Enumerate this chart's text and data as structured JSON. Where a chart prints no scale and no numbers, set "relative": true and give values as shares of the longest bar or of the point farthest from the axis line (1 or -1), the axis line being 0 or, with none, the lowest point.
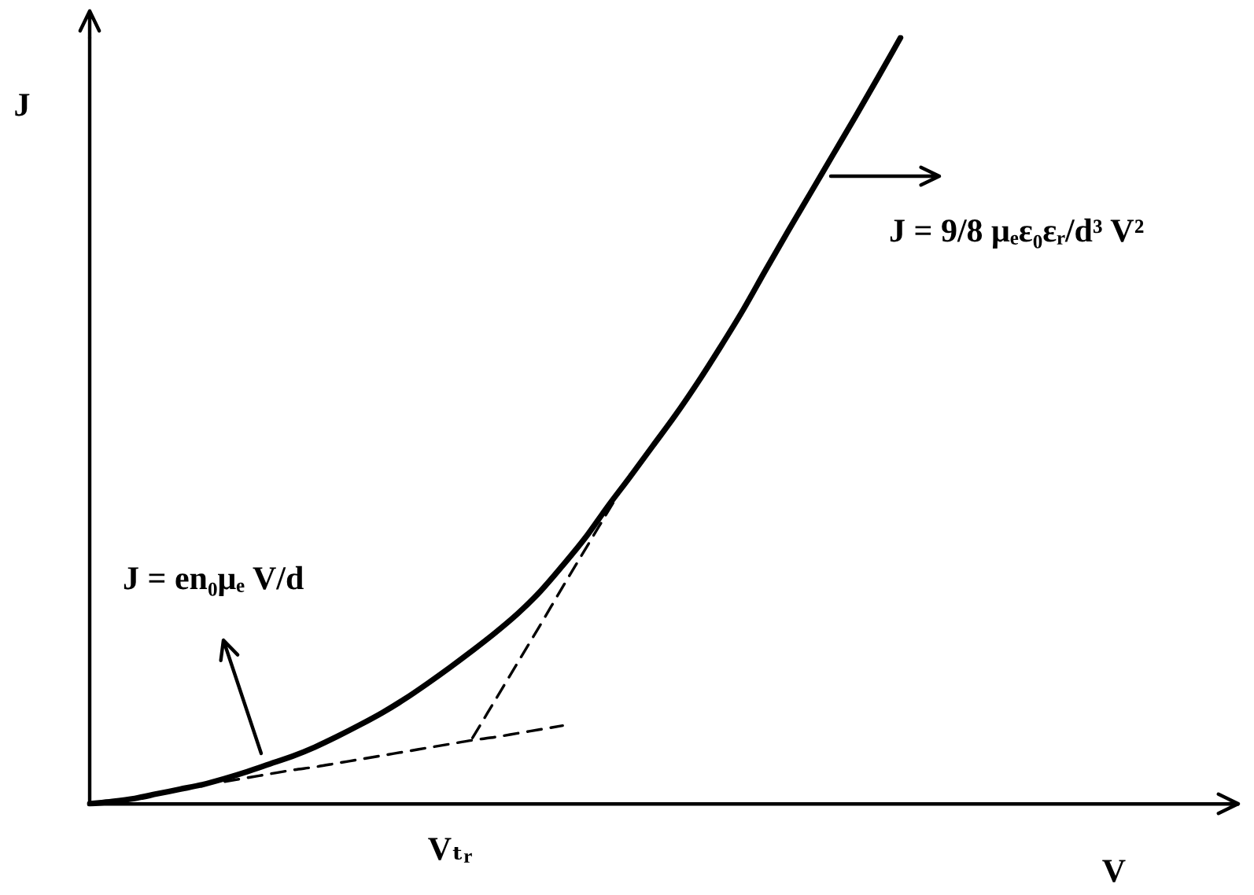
{
  "chart_data": {
    "type": "line",
    "relative": true,
    "xlabel": "V",
    "ylabel": "J",
    "categories": [
      null,
      null,
      null,
      null,
      null,
      null,
      null,
      null,
      null,
      null,
      null,
      null,
      null,
      null,
      null,
      null,
      null,
      null,
      null,
      null,
      null,
      null,
      null,
      null,
      null,
      null,
      null,
      null,
      null,
      null,
      null,
      null,
      null,
      null,
      null,
      null,
      null,
      null,
      null,
      null,
      null,
      null,
      null,
      null,
      null,
      null,
      null,
      null,
      null,
      null,
      null,
      null
    ],
    "series": [
      {
        "color": "#000000",
        "values": [
          0,
          0.003,
          0.007,
          0.013,
          0.019,
          0.025,
          0.033,
          0.042,
          0.052,
          0.062,
          0.074,
          0.088,
          0.103,
          0.119,
          0.137,
          0.157,
          0.178,
          0.2,
          0.223,
          0.248,
          0.277,
          0.311,
          0.347,
          0.388,
          0.427,
          0.467,
          0.507,
          0.55,
          0.596,
          0.644,
          0.696,
          0.747,
          0.797,
          0.847,
          0.897,
          0.948,
          1,
          null,
          null,
          null,
          null,
          null,
          null,
          null,
          null,
          null,
          null,
          null,
          null,
          null,
          null,
          null
        ]
      },
      {
        "color": "#000000",
        "line_style": "dashed",
        "values": [
          null,
          null,
          null,
          null,
          null,
          null,
          0.029,
          0.034,
          0.039,
          0.044,
          0.048,
          0.053,
          0.058,
          0.063,
          0.068,
          0.073,
          0.078,
          0.083,
          0.087,
          0.092,
          0.097,
          0.102,
          null,
          null,
          null,
          null,
          null,
          null,
          null,
          null,
          null,
          null,
          null,
          null,
          null,
          null,
          null,
          null,
          null,
          null,
          null,
          null,
          null,
          null,
          null,
          null,
          null,
          null,
          null,
          null,
          null,
          null
        ]
      },
      {
        "color": "#000000",
        "line_style": "dashed",
        "values": [
          null,
          null,
          null,
          null,
          null,
          null,
          null,
          null,
          null,
          null,
          null,
          null,
          null,
          null,
          null,
          null,
          null,
          0.086,
          0.135,
          0.184,
          0.233,
          0.283,
          0.332,
          0.381,
          0.43,
          null,
          null,
          null,
          null,
          null,
          null,
          null,
          null,
          null,
          null,
          null,
          null,
          null,
          null,
          null,
          null,
          null,
          null,
          null,
          null,
          null,
          null,
          null,
          null,
          null,
          null,
          null
        ]
      }
    ],
    "annotations": [
      "J = en₀μₑ V/d",
      "J = 9/8 μₑε₀εᵣ/d³ V²",
      "Vₜᵣ"
    ]
  }
}
